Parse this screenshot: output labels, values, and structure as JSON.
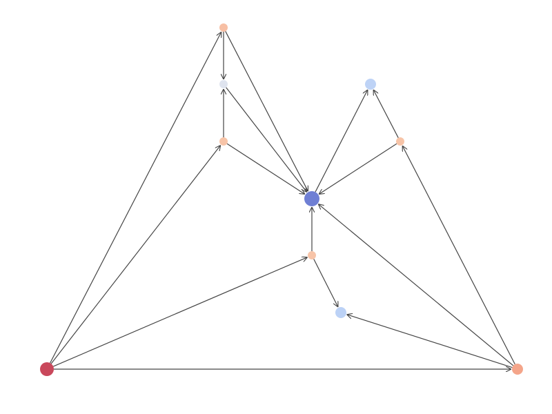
{
  "nodes": [
    {
      "color": "#c9485b"
    },
    {
      "color": "#f4a58a"
    },
    {
      "color": "#f7bfa4"
    },
    {
      "color": "#dfe4ef"
    },
    {
      "color": "#f7c4a8"
    },
    {
      "color": "#bed3f6"
    },
    {
      "color": "#f7c4a8"
    },
    {
      "color": "#6f7fd4"
    },
    {
      "color": "#f7c4a8"
    },
    {
      "color": "#bcd2f6"
    }
  ],
  "edges": [
    {
      "source": 0,
      "target": 2
    },
    {
      "source": 0,
      "target": 4
    },
    {
      "source": 0,
      "target": 8
    },
    {
      "source": 0,
      "target": 1
    },
    {
      "source": 2,
      "target": 3
    },
    {
      "source": 2,
      "target": 7
    },
    {
      "source": 3,
      "target": 7
    },
    {
      "source": 4,
      "target": 3
    },
    {
      "source": 4,
      "target": 7
    },
    {
      "source": 6,
      "target": 5
    },
    {
      "source": 6,
      "target": 7
    },
    {
      "source": 7,
      "target": 5
    },
    {
      "source": 8,
      "target": 7
    },
    {
      "source": 8,
      "target": 9
    },
    {
      "source": 1,
      "target": 9
    },
    {
      "source": 1,
      "target": 7
    },
    {
      "source": 1,
      "target": 6
    }
  ]
}
